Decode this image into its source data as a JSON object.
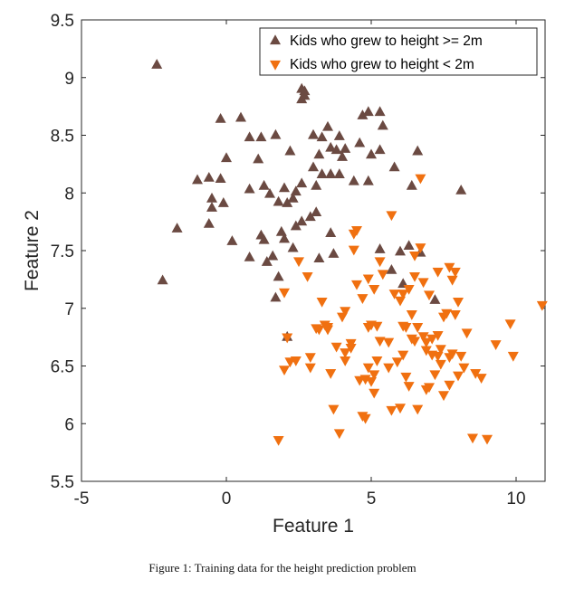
{
  "chart_data": {
    "type": "scatter",
    "title": "",
    "xlabel": "Feature 1",
    "ylabel": "Feature 2",
    "xlim": [
      -5,
      11
    ],
    "ylim": [
      5.5,
      9.5
    ],
    "xticks": [
      "-5",
      "0",
      "5",
      "10"
    ],
    "yticks": [
      "5.5",
      "6",
      "6.5",
      "7",
      "7.5",
      "8",
      "8.5",
      "9",
      "9.5"
    ],
    "grid": false,
    "legend_placement": "top-right",
    "series": [
      {
        "name": "Kids who grew to height >= 2m",
        "marker": "triangle-up",
        "color": "#6b4a42",
        "points": [
          [
            -2.4,
            9.11
          ],
          [
            -2.2,
            7.24
          ],
          [
            -1.7,
            7.69
          ],
          [
            -1.0,
            8.11
          ],
          [
            -0.6,
            8.13
          ],
          [
            -0.5,
            7.95
          ],
          [
            -0.5,
            7.87
          ],
          [
            -0.6,
            7.73
          ],
          [
            -0.2,
            8.12
          ],
          [
            -0.2,
            8.64
          ],
          [
            0.0,
            8.3
          ],
          [
            -0.1,
            7.91
          ],
          [
            0.2,
            7.58
          ],
          [
            0.5,
            8.65
          ],
          [
            0.8,
            8.03
          ],
          [
            0.8,
            8.48
          ],
          [
            0.8,
            7.44
          ],
          [
            1.1,
            8.29
          ],
          [
            1.2,
            8.48
          ],
          [
            1.3,
            8.06
          ],
          [
            1.5,
            7.99
          ],
          [
            1.7,
            8.5
          ],
          [
            1.8,
            7.92
          ],
          [
            1.2,
            7.63
          ],
          [
            1.3,
            7.59
          ],
          [
            1.4,
            7.4
          ],
          [
            1.6,
            7.45
          ],
          [
            1.7,
            7.09
          ],
          [
            1.9,
            7.66
          ],
          [
            2.0,
            7.6
          ],
          [
            1.8,
            7.27
          ],
          [
            2.1,
            6.75
          ],
          [
            2.0,
            8.04
          ],
          [
            2.1,
            7.91
          ],
          [
            2.2,
            8.36
          ],
          [
            2.3,
            7.95
          ],
          [
            2.4,
            8.01
          ],
          [
            2.4,
            7.71
          ],
          [
            2.6,
            7.75
          ],
          [
            2.9,
            7.79
          ],
          [
            2.3,
            7.52
          ],
          [
            2.6,
            8.81
          ],
          [
            2.7,
            8.88
          ],
          [
            2.6,
            8.9
          ],
          [
            2.7,
            8.84
          ],
          [
            2.6,
            8.08
          ],
          [
            3.0,
            8.5
          ],
          [
            3.0,
            8.22
          ],
          [
            3.1,
            8.06
          ],
          [
            3.1,
            7.83
          ],
          [
            3.2,
            8.33
          ],
          [
            3.3,
            8.16
          ],
          [
            3.3,
            8.48
          ],
          [
            3.5,
            8.57
          ],
          [
            3.6,
            8.39
          ],
          [
            3.6,
            8.16
          ],
          [
            3.2,
            7.43
          ],
          [
            3.6,
            7.65
          ],
          [
            3.7,
            7.47
          ],
          [
            3.9,
            8.49
          ],
          [
            3.9,
            8.16
          ],
          [
            4.0,
            8.31
          ],
          [
            4.1,
            8.38
          ],
          [
            4.4,
            8.1
          ],
          [
            4.6,
            8.43
          ],
          [
            4.7,
            8.67
          ],
          [
            4.9,
            8.7
          ],
          [
            4.9,
            8.1
          ],
          [
            5.0,
            8.33
          ],
          [
            5.3,
            8.37
          ],
          [
            5.3,
            8.7
          ],
          [
            5.4,
            8.58
          ],
          [
            5.3,
            7.51
          ],
          [
            5.7,
            7.33
          ],
          [
            5.8,
            8.22
          ],
          [
            6.0,
            7.49
          ],
          [
            6.1,
            7.21
          ],
          [
            6.3,
            7.54
          ],
          [
            6.6,
            8.36
          ],
          [
            6.7,
            7.48
          ],
          [
            7.2,
            7.07
          ],
          [
            8.1,
            8.02
          ],
          [
            6.4,
            8.06
          ],
          [
            3.8,
            8.37
          ]
        ]
      },
      {
        "name": "Kids who grew to height < 2m",
        "marker": "triangle-down",
        "color": "#f07010",
        "points": [
          [
            1.8,
            5.86
          ],
          [
            2.0,
            6.47
          ],
          [
            2.1,
            6.75
          ],
          [
            2.2,
            6.54
          ],
          [
            2.4,
            6.55
          ],
          [
            2.0,
            7.14
          ],
          [
            2.5,
            7.41
          ],
          [
            2.8,
            7.28
          ],
          [
            2.9,
            6.58
          ],
          [
            2.9,
            6.49
          ],
          [
            3.2,
            6.82
          ],
          [
            3.3,
            7.06
          ],
          [
            3.5,
            6.84
          ],
          [
            3.5,
            6.82
          ],
          [
            3.7,
            6.13
          ],
          [
            3.8,
            6.67
          ],
          [
            3.9,
            5.92
          ],
          [
            4.0,
            6.93
          ],
          [
            4.1,
            6.98
          ],
          [
            4.1,
            6.62
          ],
          [
            4.1,
            6.55
          ],
          [
            4.3,
            6.7
          ],
          [
            4.4,
            7.65
          ],
          [
            4.5,
            7.68
          ],
          [
            4.4,
            7.51
          ],
          [
            4.5,
            7.21
          ],
          [
            4.6,
            6.38
          ],
          [
            4.7,
            6.07
          ],
          [
            4.7,
            7.09
          ],
          [
            4.8,
            6.39
          ],
          [
            4.8,
            6.05
          ],
          [
            4.9,
            6.49
          ],
          [
            5.0,
            6.86
          ],
          [
            5.0,
            6.37
          ],
          [
            5.1,
            6.43
          ],
          [
            5.1,
            7.17
          ],
          [
            5.1,
            6.27
          ],
          [
            5.2,
            6.85
          ],
          [
            5.3,
            7.41
          ],
          [
            5.4,
            7.3
          ],
          [
            5.6,
            6.71
          ],
          [
            5.6,
            6.49
          ],
          [
            5.7,
            6.12
          ],
          [
            5.7,
            7.81
          ],
          [
            5.9,
            6.54
          ],
          [
            6.0,
            6.14
          ],
          [
            6.0,
            7.07
          ],
          [
            6.1,
            6.85
          ],
          [
            6.1,
            6.6
          ],
          [
            6.1,
            7.13
          ],
          [
            6.2,
            6.84
          ],
          [
            6.3,
            6.33
          ],
          [
            6.3,
            7.17
          ],
          [
            6.4,
            6.74
          ],
          [
            6.5,
            7.46
          ],
          [
            6.5,
            7.28
          ],
          [
            6.6,
            6.84
          ],
          [
            6.6,
            6.13
          ],
          [
            6.7,
            7.53
          ],
          [
            6.7,
            8.13
          ],
          [
            6.8,
            6.76
          ],
          [
            6.9,
            6.64
          ],
          [
            7.0,
            7.12
          ],
          [
            7.0,
            6.32
          ],
          [
            7.1,
            6.6
          ],
          [
            7.1,
            6.74
          ],
          [
            7.2,
            6.43
          ],
          [
            7.3,
            6.59
          ],
          [
            7.3,
            6.77
          ],
          [
            7.3,
            7.32
          ],
          [
            7.4,
            6.52
          ],
          [
            7.5,
            6.25
          ],
          [
            7.5,
            6.93
          ],
          [
            7.6,
            6.96
          ],
          [
            7.7,
            6.34
          ],
          [
            7.7,
            7.36
          ],
          [
            7.8,
            6.61
          ],
          [
            7.8,
            7.25
          ],
          [
            7.9,
            6.95
          ],
          [
            7.9,
            7.32
          ],
          [
            8.0,
            6.42
          ],
          [
            8.0,
            7.06
          ],
          [
            8.1,
            6.59
          ],
          [
            8.2,
            6.49
          ],
          [
            8.3,
            6.79
          ],
          [
            8.6,
            6.44
          ],
          [
            8.8,
            6.4
          ],
          [
            9.0,
            5.87
          ],
          [
            9.3,
            6.69
          ],
          [
            9.8,
            6.87
          ],
          [
            9.9,
            6.59
          ],
          [
            10.9,
            7.03
          ],
          [
            8.5,
            5.88
          ],
          [
            6.9,
            6.3
          ],
          [
            5.2,
            6.55
          ],
          [
            4.3,
            6.66
          ],
          [
            3.4,
            6.86
          ],
          [
            3.1,
            6.83
          ],
          [
            4.9,
            7.26
          ],
          [
            6.5,
            6.72
          ],
          [
            7.4,
            6.65
          ],
          [
            6.2,
            6.41
          ],
          [
            7.7,
            6.58
          ],
          [
            4.9,
            6.84
          ],
          [
            5.3,
            6.72
          ],
          [
            6.9,
            6.71
          ],
          [
            6.4,
            6.95
          ],
          [
            5.8,
            7.13
          ],
          [
            6.8,
            7.23
          ],
          [
            3.6,
            6.44
          ]
        ]
      }
    ]
  },
  "caption": "Figure 1: Training data for the height prediction problem"
}
